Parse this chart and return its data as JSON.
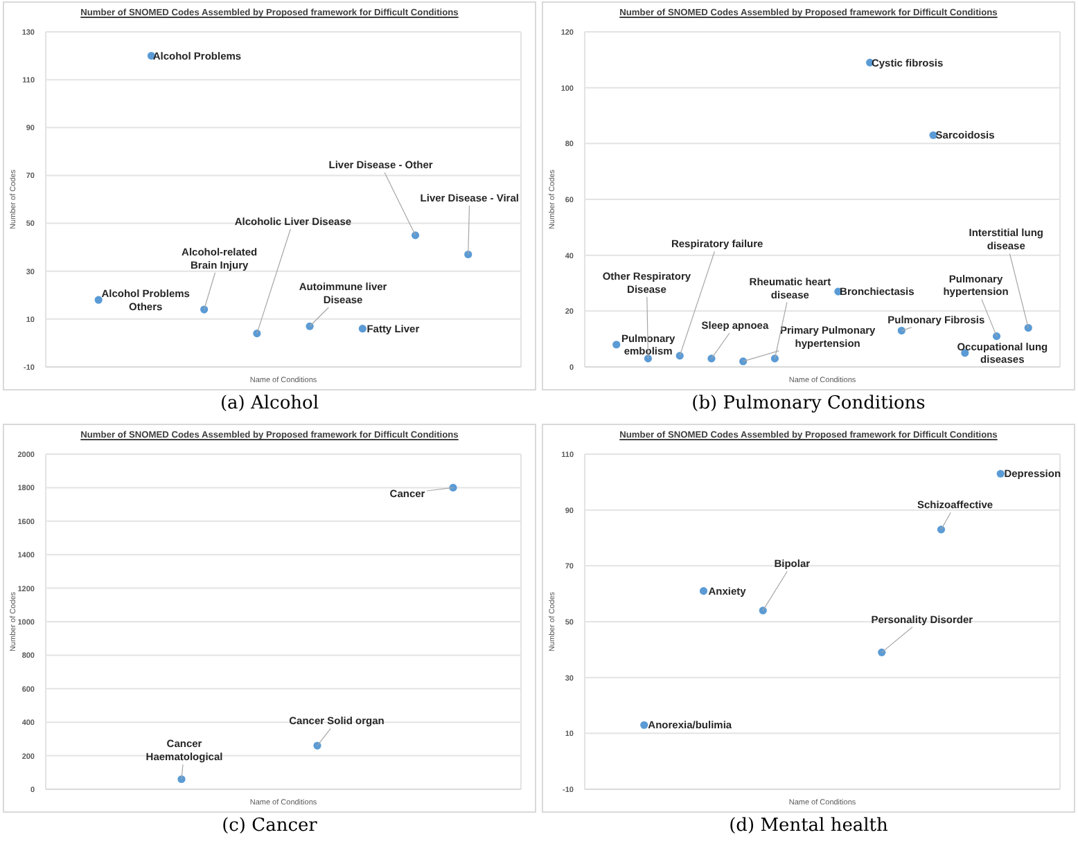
{
  "chart_data": [
    {
      "type": "scatter",
      "title": "Number of SNOMED Codes Assembled by Proposed framework for Difficult Conditions",
      "xlabel": "Name of Conditions",
      "ylabel": "Number of Codes",
      "color": "#5b9bd5",
      "marker": "circle",
      "grid": true,
      "tick_labels": "y",
      "categories": [
        null,
        null,
        null,
        null,
        null,
        null,
        null,
        null
      ],
      "values": [
        18,
        120,
        14,
        4,
        7,
        6,
        45,
        37
      ],
      "ylim": [
        -10,
        130
      ],
      "yticks": [
        -10,
        10,
        30,
        50,
        70,
        90,
        110,
        130
      ],
      "annotations": [
        "Alcohol Problems Others",
        "Alcohol Problems",
        "Alcohol-related Brain Injury",
        "Alcoholic Liver Disease",
        "Autoimmune liver Disease",
        "Fatty Liver",
        "Liver Disease - Other",
        "Liver Disease - Viral",
        "(a) Alcohol"
      ]
    },
    {
      "type": "scatter",
      "title": "Number of SNOMED Codes Assembled by Proposed framework for Difficult Conditions",
      "xlabel": "Name of Conditions",
      "ylabel": "Number of Codes",
      "color": "#5b9bd5",
      "marker": "circle",
      "grid": true,
      "tick_labels": "y",
      "categories": [
        null,
        null,
        null,
        null,
        null,
        null,
        null,
        null,
        null,
        null,
        null,
        null,
        null,
        null
      ],
      "values": [
        8,
        3,
        4,
        3,
        2,
        3,
        null,
        27,
        109,
        13,
        83,
        5,
        11,
        14
      ],
      "ylim": [
        0,
        120
      ],
      "yticks": [
        0,
        20,
        40,
        60,
        80,
        100,
        120
      ],
      "annotations": [
        "Pulmonary embolism",
        "Other Respiratory Disease",
        "Respiratory failure",
        "Sleep apnoea",
        "Primary Pulmonary hypertension",
        "Rheumatic heart disease",
        "Bronchiectasis",
        "Cystic fibrosis",
        "Pulmonary Fibrosis",
        "Sarcoidosis",
        "Occupational lung diseases",
        "Pulmonary hypertension",
        "Interstitial lung disease",
        "(b) Pulmonary Conditions"
      ]
    },
    {
      "type": "scatter",
      "title": "Number of SNOMED Codes Assembled by Proposed framework for Difficult Conditions",
      "xlabel": "Name of Conditions",
      "ylabel": "Number of Codes",
      "color": "#5b9bd5",
      "marker": "circle",
      "grid": true,
      "tick_labels": "y",
      "categories": [
        null,
        null,
        null,
        null,
        null,
        null
      ],
      "values": [
        null,
        60,
        null,
        260,
        null,
        1800
      ],
      "ylim": [
        0,
        2000
      ],
      "yticks": [
        0,
        200,
        400,
        600,
        800,
        1000,
        1200,
        1400,
        1600,
        1800,
        2000
      ],
      "annotations": [
        "Cancer Haematological",
        "Cancer Solid organ",
        "Cancer",
        "(c) Cancer"
      ]
    },
    {
      "type": "scatter",
      "title": "Number of SNOMED Codes Assembled by Proposed framework for Difficult Conditions",
      "xlabel": "Name of Conditions",
      "ylabel": "Number of Codes",
      "color": "#5b9bd5",
      "marker": "circle",
      "grid": true,
      "tick_labels": "y",
      "categories": [
        null,
        null,
        null,
        null,
        null,
        null,
        null
      ],
      "values": [
        13,
        61,
        54,
        null,
        39,
        83,
        103
      ],
      "ylim": [
        -10,
        110
      ],
      "yticks": [
        -10,
        10,
        30,
        50,
        70,
        90,
        110
      ],
      "annotations": [
        "Anorexia/bulimia",
        "Anxiety",
        "Bipolar",
        "Personality Disorder",
        "Schizoaffective",
        "Depression",
        "(d) Mental health"
      ]
    }
  ]
}
